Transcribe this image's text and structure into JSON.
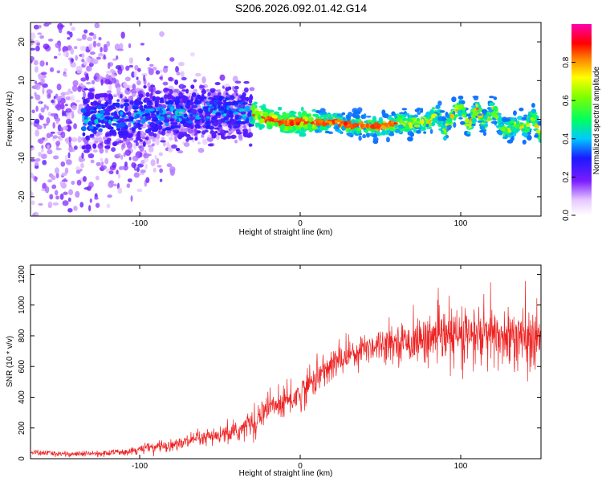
{
  "title": "S206.2026.092.01.42.G14",
  "chart_data": [
    {
      "type": "heatmap",
      "xlabel": "Height of straight line (km)",
      "ylabel": "Frequency (Hz)",
      "xlim": [
        -168,
        150
      ],
      "ylim": [
        -25,
        25
      ],
      "xticks": [
        -100,
        0,
        100
      ],
      "yticks": [
        -20,
        -10,
        0,
        10,
        20
      ],
      "colorbar": {
        "label": "Normalized spectral amplitude",
        "range": [
          0,
          1
        ],
        "ticks": [
          0.0,
          0.2,
          0.4,
          0.6,
          0.8
        ]
      },
      "ridge": {
        "description_points_x": [
          -168,
          -130,
          -110,
          -90,
          -70,
          -50,
          -30,
          -20,
          -10,
          0,
          10,
          20,
          30,
          40,
          50,
          60,
          70,
          80,
          85,
          90,
          95,
          100,
          105,
          110,
          115,
          120,
          125,
          130,
          135,
          140,
          145,
          150
        ],
        "description_points_y": [
          0,
          0,
          0.5,
          1,
          1.5,
          2,
          1.5,
          0,
          -1,
          -0.5,
          -1,
          -0.5,
          -1.5,
          -1.5,
          -2,
          -1,
          -1,
          -0.5,
          2,
          -3,
          1,
          3,
          -2,
          3,
          -1.5,
          3,
          -2,
          -3,
          -1,
          -3,
          1,
          -4
        ]
      }
    },
    {
      "type": "line",
      "xlabel": "Height of straight line (km)",
      "ylabel": "SNR (10 * v/v)",
      "xlim": [
        -168,
        150
      ],
      "ylim": [
        0,
        1260
      ],
      "xticks": [
        -100,
        0,
        100
      ],
      "yticks": [
        0,
        200,
        400,
        600,
        800,
        1000,
        1200
      ],
      "color": "#ee2222",
      "trend_x": [
        -168,
        -140,
        -120,
        -100,
        -80,
        -60,
        -40,
        -30,
        -20,
        -10,
        0,
        10,
        20,
        30,
        40,
        50,
        60,
        70,
        80,
        90,
        100,
        110,
        120,
        130,
        140,
        150
      ],
      "trend_y": [
        40,
        30,
        35,
        60,
        90,
        130,
        170,
        240,
        330,
        360,
        420,
        530,
        610,
        680,
        720,
        750,
        760,
        760,
        780,
        790,
        790,
        800,
        790,
        790,
        770,
        760
      ],
      "noise_amplitude": [
        15,
        15,
        15,
        25,
        35,
        45,
        55,
        70,
        90,
        90,
        90,
        90,
        90,
        90,
        90,
        90,
        90,
        110,
        130,
        150,
        170,
        180,
        180,
        180,
        180,
        180
      ]
    }
  ]
}
